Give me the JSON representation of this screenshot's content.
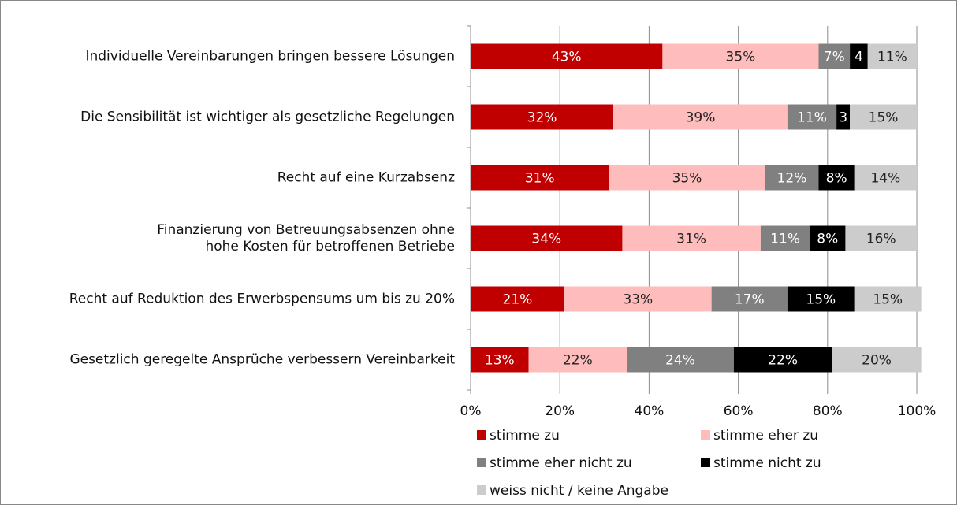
{
  "chart_data": {
    "type": "stacked_bar_horizontal",
    "categories": [
      "Individuelle Vereinbarungen bringen bessere Lösungen",
      "Die Sensibilität ist wichtiger als gesetzliche Regelungen",
      "Recht auf eine Kurzabsenz",
      "Finanzierung von  Betreuungsabsenzen ohne\nhohe Kosten für betroffenen Betriebe",
      "Recht auf Reduktion des Erwerbspensums um bis zu 20%",
      "Gesetzlich geregelte Ansprüche verbessern Vereinbarkeit"
    ],
    "series": [
      {
        "name": "stimme zu",
        "color": "#c00000",
        "values": [
          43,
          32,
          31,
          34,
          21,
          13
        ],
        "value_labels": [
          "43%",
          "32%",
          "31%",
          "34%",
          "21%",
          "13%"
        ]
      },
      {
        "name": "stimme eher zu",
        "color": "#ffbcbc",
        "values": [
          35,
          39,
          35,
          31,
          33,
          22
        ],
        "value_labels": [
          "35%",
          "39%",
          "35%",
          "31%",
          "33%",
          "22%"
        ]
      },
      {
        "name": "stimme eher nicht zu",
        "color": "#808080",
        "values": [
          7,
          11,
          12,
          11,
          17,
          24
        ],
        "value_labels": [
          "7%",
          "11%",
          "12%",
          "11%",
          "17%",
          "24%"
        ]
      },
      {
        "name": "stimme nicht zu",
        "color": "#000000",
        "values": [
          4,
          3,
          8,
          8,
          15,
          22
        ],
        "value_labels": [
          "4",
          "3",
          "8%",
          "8%",
          "15%",
          "22%"
        ]
      },
      {
        "name": "weiss nicht / keine Angabe",
        "color": "#cccccc",
        "values": [
          11,
          15,
          14,
          16,
          15,
          20
        ],
        "value_labels": [
          "11%",
          "15%",
          "14%",
          "16%",
          "15%",
          "20%"
        ]
      }
    ],
    "xlim": [
      0,
      100
    ],
    "xticks": [
      {
        "value": 0,
        "label": "0%"
      },
      {
        "value": 20,
        "label": "20%"
      },
      {
        "value": 40,
        "label": "40%"
      },
      {
        "value": 60,
        "label": "60%"
      },
      {
        "value": 80,
        "label": "80%"
      },
      {
        "value": 100,
        "label": "100%"
      }
    ],
    "grid": true
  }
}
